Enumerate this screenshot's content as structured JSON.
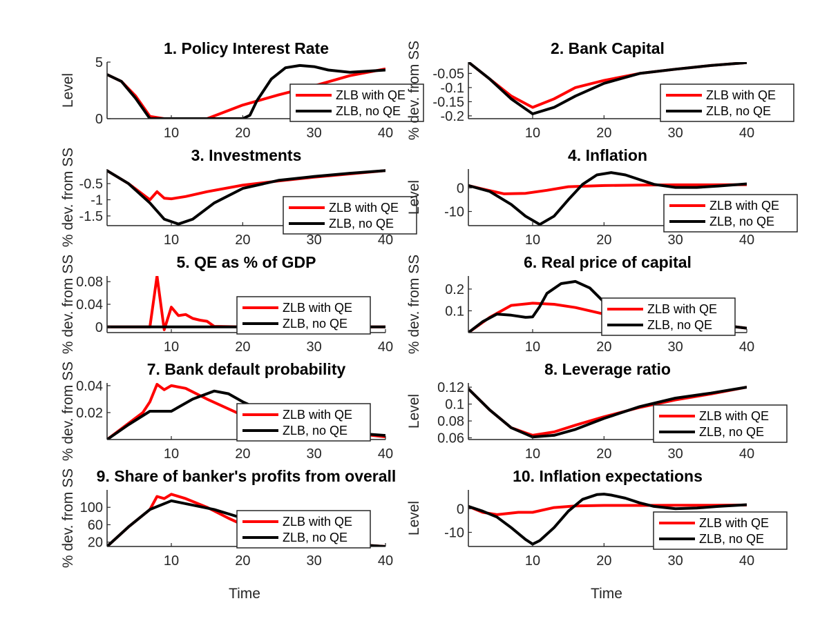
{
  "legend_labels": [
    "ZLB with QE",
    "ZLB, no QE"
  ],
  "colors": {
    "with_qe": "#ff0000",
    "no_qe": "#000000",
    "axis": "#262626"
  },
  "x_axis_label": "Time",
  "chart_data": [
    {
      "type": "line",
      "title": "1. Policy Interest Rate",
      "ylabel": "Level",
      "xlim": [
        1,
        40
      ],
      "ylim": [
        0,
        5
      ],
      "xticks": [
        10,
        20,
        30,
        40
      ],
      "yticks": [
        0,
        5
      ],
      "legend": "right",
      "series": [
        {
          "name": "ZLB with QE",
          "x": [
            1,
            3,
            5,
            7,
            9,
            12,
            15,
            20,
            25,
            30,
            35,
            40
          ],
          "y": [
            3.9,
            3.3,
            2.0,
            0.2,
            0.0,
            0.0,
            0.0,
            1.2,
            2.1,
            2.9,
            3.8,
            4.4
          ]
        },
        {
          "name": "ZLB, no QE",
          "x": [
            1,
            3,
            5,
            7,
            10,
            15,
            20,
            21,
            22,
            24,
            26,
            28,
            30,
            32,
            35,
            40
          ],
          "y": [
            3.9,
            3.3,
            1.8,
            0.0,
            0.0,
            0.0,
            0.0,
            0.3,
            1.6,
            3.5,
            4.5,
            4.7,
            4.6,
            4.3,
            4.1,
            4.3
          ]
        }
      ]
    },
    {
      "type": "line",
      "title": "2. Bank Capital",
      "ylabel": "% dev. from SS",
      "xlim": [
        1,
        40
      ],
      "ylim": [
        -0.21,
        -0.01
      ],
      "xticks": [
        10,
        20,
        30,
        40
      ],
      "yticks": [
        -0.2,
        -0.15,
        -0.1,
        -0.05
      ],
      "ytick_labels": [
        "-0.2",
        "-0.15",
        "-0.1",
        "-0.05"
      ],
      "legend": "right",
      "series": [
        {
          "name": "ZLB with QE",
          "x": [
            1,
            4,
            7,
            10,
            13,
            16,
            20,
            25,
            30,
            35,
            40
          ],
          "y": [
            -0.01,
            -0.07,
            -0.13,
            -0.17,
            -0.14,
            -0.1,
            -0.075,
            -0.05,
            -0.035,
            -0.022,
            -0.012
          ]
        },
        {
          "name": "ZLB, no QE",
          "x": [
            1,
            4,
            7,
            10,
            13,
            16,
            20,
            25,
            30,
            35,
            40
          ],
          "y": [
            -0.01,
            -0.07,
            -0.14,
            -0.193,
            -0.17,
            -0.13,
            -0.085,
            -0.05,
            -0.035,
            -0.022,
            -0.012
          ]
        }
      ]
    },
    {
      "type": "line",
      "title": "3. Investments",
      "ylabel": "% dev. from SS",
      "xlim": [
        1,
        40
      ],
      "ylim": [
        -1.8,
        -0.05
      ],
      "xticks": [
        10,
        20,
        30,
        40
      ],
      "yticks": [
        -1.5,
        -1,
        -0.5
      ],
      "legend": "right",
      "series": [
        {
          "name": "ZLB with QE",
          "x": [
            1,
            4,
            7,
            8,
            9,
            10,
            12,
            15,
            20,
            25,
            30,
            35,
            40
          ],
          "y": [
            -0.1,
            -0.5,
            -1.0,
            -0.75,
            -0.95,
            -0.97,
            -0.9,
            -0.75,
            -0.55,
            -0.42,
            -0.3,
            -0.2,
            -0.1
          ]
        },
        {
          "name": "ZLB, no QE",
          "x": [
            1,
            4,
            7,
            9,
            11,
            13,
            16,
            20,
            25,
            30,
            35,
            40
          ],
          "y": [
            -0.1,
            -0.5,
            -1.1,
            -1.6,
            -1.75,
            -1.6,
            -1.1,
            -0.65,
            -0.4,
            -0.28,
            -0.18,
            -0.1
          ]
        }
      ]
    },
    {
      "type": "line",
      "title": "4. Inflation",
      "ylabel": "Level",
      "xlim": [
        1,
        40
      ],
      "ylim": [
        -16,
        8
      ],
      "xticks": [
        10,
        20,
        30,
        40
      ],
      "yticks": [
        -10,
        0
      ],
      "legend": "right",
      "series": [
        {
          "name": "ZLB with QE",
          "x": [
            1,
            3,
            6,
            9,
            12,
            15,
            20,
            25,
            30,
            35,
            40
          ],
          "y": [
            1.0,
            -0.5,
            -2.5,
            -2.3,
            -1.0,
            0.5,
            1.0,
            1.2,
            1.3,
            1.3,
            1.4
          ]
        },
        {
          "name": "ZLB, no QE",
          "x": [
            1,
            4,
            7,
            9,
            11,
            13,
            15,
            17,
            19,
            21,
            23,
            25,
            27,
            30,
            33,
            36,
            40
          ],
          "y": [
            1.0,
            -1.5,
            -7.0,
            -12.0,
            -15.5,
            -12.0,
            -5.0,
            1.5,
            5.5,
            6.5,
            5.5,
            3.5,
            1.5,
            0.2,
            0.2,
            0.8,
            1.7
          ]
        }
      ]
    },
    {
      "type": "line",
      "title": "5. QE as % of GDP",
      "ylabel": "% dev. from SS",
      "xlim": [
        1,
        40
      ],
      "ylim": [
        -0.01,
        0.09
      ],
      "xticks": [
        10,
        20,
        30,
        40
      ],
      "yticks": [
        0,
        0.04,
        0.08
      ],
      "legend": "right",
      "series": [
        {
          "name": "ZLB with QE",
          "x": [
            1,
            7,
            8,
            9,
            10,
            11,
            12,
            13,
            14,
            15,
            16,
            20,
            40
          ],
          "y": [
            0,
            0,
            0.09,
            -0.005,
            0.035,
            0.02,
            0.022,
            0.015,
            0.012,
            0.01,
            0.001,
            0,
            0
          ]
        },
        {
          "name": "ZLB, no QE",
          "x": [
            1,
            40
          ],
          "y": [
            0,
            0
          ]
        }
      ]
    },
    {
      "type": "line",
      "title": "6. Real price of capital",
      "ylabel": "% dev. from SS",
      "xlim": [
        1,
        40
      ],
      "ylim": [
        0.0,
        0.26
      ],
      "xticks": [
        10,
        20,
        30,
        40
      ],
      "yticks": [
        0.1,
        0.2
      ],
      "legend": "right",
      "series": [
        {
          "name": "ZLB with QE",
          "x": [
            1,
            4,
            7,
            10,
            13,
            16,
            20,
            25,
            30,
            35,
            40
          ],
          "y": [
            0.0,
            0.07,
            0.125,
            0.135,
            0.13,
            0.115,
            0.085,
            0.07,
            0.06,
            0.04,
            0.02
          ]
        },
        {
          "name": "ZLB, no QE",
          "x": [
            1,
            3,
            5,
            7,
            9,
            10,
            11,
            12,
            14,
            16,
            18,
            20,
            22,
            25,
            30,
            35,
            40
          ],
          "y": [
            0.0,
            0.05,
            0.085,
            0.08,
            0.07,
            0.072,
            0.12,
            0.18,
            0.225,
            0.235,
            0.205,
            0.14,
            0.09,
            0.075,
            0.07,
            0.04,
            0.02
          ]
        }
      ]
    },
    {
      "type": "line",
      "title": "7. Bank default probability",
      "ylabel": "% dev. from SS",
      "xlim": [
        1,
        40
      ],
      "ylim": [
        0.0,
        0.042
      ],
      "xticks": [
        10,
        20,
        30,
        40
      ],
      "yticks": [
        0.02,
        0.04
      ],
      "legend": "right",
      "series": [
        {
          "name": "ZLB with QE",
          "x": [
            1,
            4,
            6,
            7,
            8,
            9,
            10,
            12,
            15,
            20,
            25,
            30,
            35,
            40
          ],
          "y": [
            0.0,
            0.012,
            0.02,
            0.028,
            0.041,
            0.037,
            0.04,
            0.038,
            0.03,
            0.018,
            0.012,
            0.008,
            0.005,
            0.002
          ]
        },
        {
          "name": "ZLB, no QE",
          "x": [
            1,
            4,
            7,
            10,
            13,
            16,
            18,
            20,
            25,
            30,
            35,
            40
          ],
          "y": [
            0.0,
            0.011,
            0.021,
            0.021,
            0.03,
            0.036,
            0.034,
            0.028,
            0.016,
            0.009,
            0.005,
            0.003
          ]
        }
      ]
    },
    {
      "type": "line",
      "title": "8. Leverage ratio",
      "ylabel": "Level",
      "xlim": [
        1,
        40
      ],
      "ylim": [
        0.058,
        0.125
      ],
      "xticks": [
        10,
        20,
        30,
        40
      ],
      "yticks": [
        0.06,
        0.08,
        0.1,
        0.12
      ],
      "legend": "right",
      "series": [
        {
          "name": "ZLB with QE",
          "x": [
            1,
            4,
            7,
            10,
            13,
            16,
            20,
            25,
            30,
            35,
            40
          ],
          "y": [
            0.118,
            0.093,
            0.072,
            0.063,
            0.067,
            0.075,
            0.085,
            0.096,
            0.105,
            0.112,
            0.12
          ]
        },
        {
          "name": "ZLB, no QE",
          "x": [
            1,
            4,
            7,
            10,
            13,
            16,
            20,
            25,
            30,
            35,
            40
          ],
          "y": [
            0.118,
            0.093,
            0.072,
            0.061,
            0.063,
            0.07,
            0.083,
            0.097,
            0.107,
            0.113,
            0.12
          ]
        }
      ]
    },
    {
      "type": "line",
      "title": "9. Share of banker's profits from overall",
      "ylabel": "% dev. from SS",
      "xlim": [
        1,
        40
      ],
      "ylim": [
        10,
        140
      ],
      "xticks": [
        10,
        20,
        30,
        40
      ],
      "yticks": [
        20,
        60,
        100
      ],
      "legend": "right",
      "series": [
        {
          "name": "ZLB with QE",
          "x": [
            1,
            4,
            7,
            8,
            9,
            10,
            12,
            15,
            18,
            20,
            25,
            30,
            35,
            40
          ],
          "y": [
            10,
            55,
            95,
            125,
            120,
            130,
            120,
            100,
            75,
            60,
            40,
            25,
            15,
            10
          ]
        },
        {
          "name": "ZLB, no QE",
          "x": [
            1,
            4,
            7,
            10,
            13,
            16,
            20,
            25,
            30,
            35,
            40
          ],
          "y": [
            10,
            55,
            95,
            115,
            105,
            95,
            75,
            45,
            25,
            15,
            10
          ]
        }
      ]
    },
    {
      "type": "line",
      "title": "10. Inflation expectations",
      "ylabel": "Level",
      "xlim": [
        1,
        40
      ],
      "ylim": [
        -16,
        8
      ],
      "xticks": [
        10,
        20,
        30,
        40
      ],
      "yticks": [
        -10,
        0
      ],
      "legend": "right",
      "series": [
        {
          "name": "ZLB with QE",
          "x": [
            1,
            3,
            5,
            8,
            10,
            13,
            16,
            20,
            25,
            30,
            35,
            40
          ],
          "y": [
            1.0,
            -1.5,
            -2.5,
            -1.5,
            -1.5,
            0.5,
            1.2,
            1.4,
            1.4,
            1.5,
            1.5,
            1.6
          ]
        },
        {
          "name": "ZLB, no QE",
          "x": [
            1,
            3,
            5,
            7,
            9,
            10,
            11,
            13,
            15,
            17,
            19,
            20,
            21,
            23,
            25,
            27,
            30,
            33,
            36,
            40
          ],
          "y": [
            1.0,
            -1.0,
            -3.5,
            -8.0,
            -13.0,
            -15.0,
            -13.5,
            -8.0,
            -1.0,
            4.0,
            6.0,
            6.2,
            5.8,
            4.5,
            2.5,
            1.0,
            0.0,
            0.3,
            1.0,
            1.7
          ]
        }
      ]
    }
  ]
}
